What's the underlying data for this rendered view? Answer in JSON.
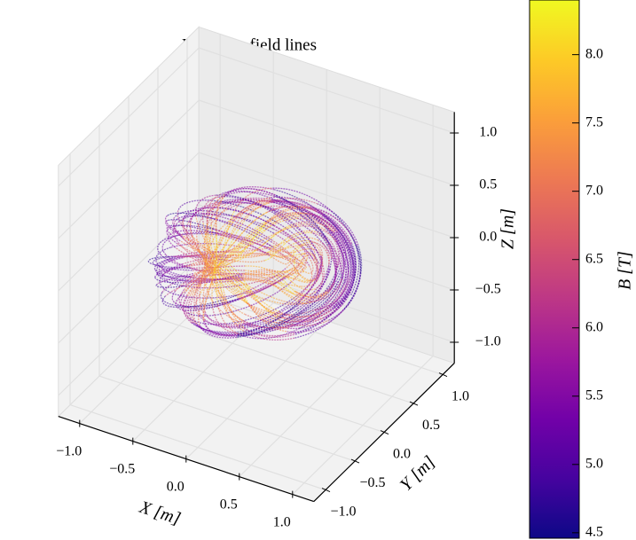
{
  "chart_data": {
    "type": "line3d",
    "title": "Magnetic field lines",
    "xlabel": "X [m]",
    "ylabel": "Y [m]",
    "zlabel": "Z [m]",
    "xlim": [
      -1.2,
      1.2
    ],
    "ylim": [
      -1.2,
      1.2
    ],
    "zlim": [
      -1.2,
      1.2
    ],
    "xticks": [
      {
        "value": -1.0,
        "label": "−1.0"
      },
      {
        "value": -0.5,
        "label": "−0.5"
      },
      {
        "value": 0,
        "label": "0.0"
      },
      0.5,
      {
        "value": 1.0,
        "label": "1.0"
      }
    ],
    "yticks": [
      {
        "value": -1.0,
        "label": "−1.0"
      },
      {
        "value": -0.5,
        "label": "−0.5"
      },
      {
        "value": 0,
        "label": "0.0"
      },
      0.5,
      {
        "value": 1.0,
        "label": "1.0"
      }
    ],
    "zticks": [
      {
        "value": -1.0,
        "label": "−1.0"
      },
      {
        "value": -0.5,
        "label": "−0.5"
      },
      {
        "value": 0,
        "label": "0.0"
      },
      0.5,
      {
        "value": 1.0,
        "label": "1.0"
      }
    ],
    "grid": true,
    "colorbar": {
      "label": "B [T]",
      "cmap": "plasma",
      "lim": [
        4.46,
        8.4
      ],
      "ticks": [
        4.5,
        {
          "value": 5.0,
          "label": "5.0"
        },
        5.5,
        {
          "value": 6.0,
          "label": "6.0"
        },
        6.5,
        {
          "value": 7.0,
          "label": "7.0"
        },
        7.5,
        {
          "value": 8.0,
          "label": "8.0"
        }
      ]
    }
  }
}
